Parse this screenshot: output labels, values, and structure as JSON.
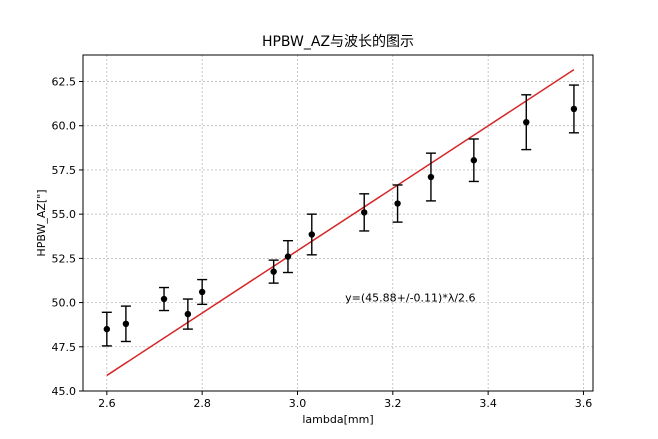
{
  "chart_data": {
    "type": "scatter",
    "title": "HPBW_AZ与波长的图示",
    "xlabel": "lambda[mm]",
    "ylabel": "HPBW_AZ[\"]",
    "xlim": [
      2.55,
      3.62
    ],
    "ylim": [
      45.0,
      64.0
    ],
    "xticks": [
      2.6,
      2.8,
      3.0,
      3.2,
      3.4,
      3.6
    ],
    "xtick_labels": [
      "2.6",
      "2.8",
      "3.0",
      "3.2",
      "3.4",
      "3.6"
    ],
    "yticks": [
      45.0,
      47.5,
      50.0,
      52.5,
      55.0,
      57.5,
      60.0,
      62.5
    ],
    "ytick_labels": [
      "45.0",
      "47.5",
      "50.0",
      "52.5",
      "55.0",
      "57.5",
      "60.0",
      "62.5"
    ],
    "grid": true,
    "points": [
      {
        "x": 2.6,
        "y": 48.5,
        "err": 0.95
      },
      {
        "x": 2.64,
        "y": 48.8,
        "err": 1.0
      },
      {
        "x": 2.72,
        "y": 50.2,
        "err": 0.65
      },
      {
        "x": 2.77,
        "y": 49.35,
        "err": 0.85
      },
      {
        "x": 2.8,
        "y": 50.6,
        "err": 0.7
      },
      {
        "x": 2.95,
        "y": 51.75,
        "err": 0.65
      },
      {
        "x": 2.98,
        "y": 52.6,
        "err": 0.9
      },
      {
        "x": 3.03,
        "y": 53.85,
        "err": 1.15
      },
      {
        "x": 3.14,
        "y": 55.1,
        "err": 1.05
      },
      {
        "x": 3.21,
        "y": 55.6,
        "err": 1.05
      },
      {
        "x": 3.28,
        "y": 57.1,
        "err": 1.35
      },
      {
        "x": 3.37,
        "y": 58.05,
        "err": 1.2
      },
      {
        "x": 3.48,
        "y": 60.2,
        "err": 1.55
      },
      {
        "x": 3.58,
        "y": 60.95,
        "err": 1.35
      }
    ],
    "fit_line": {
      "x": [
        2.6,
        3.58
      ],
      "y": [
        45.88,
        63.17
      ]
    },
    "annotation": {
      "text": "y=(45.88+/-0.11)*λ/2.6",
      "x": 3.1,
      "y": 50.0
    },
    "colors": {
      "points": "#000000",
      "fit": "#d62728",
      "grid": "#b0b0b0"
    }
  }
}
